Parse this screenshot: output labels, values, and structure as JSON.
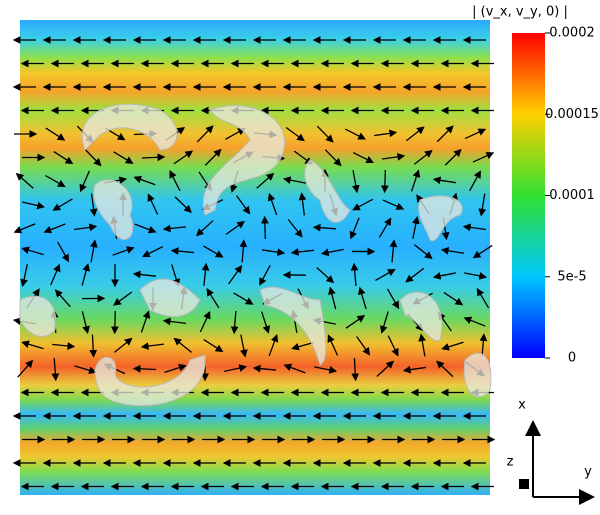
{
  "colorbar": {
    "title": "| (v_x, v_y, 0) |",
    "range": [
      0,
      0.0002
    ],
    "ticks": [
      0.0002,
      0.00015,
      0.0001,
      {
        "value": 5e-05,
        "label": "5e-5"
      },
      0
    ]
  },
  "axes": {
    "x": "x",
    "y": "y",
    "z": "z"
  }
}
